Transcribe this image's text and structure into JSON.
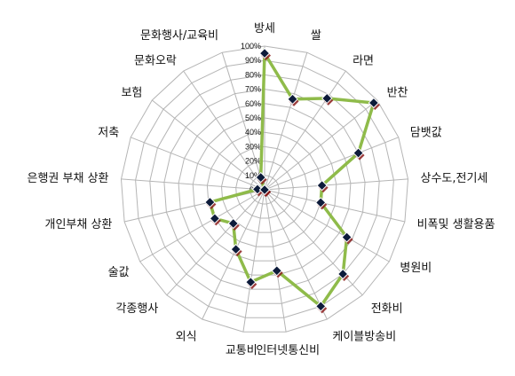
{
  "chart_data": {
    "type": "radar",
    "categories": [
      "방세",
      "쌀",
      "라면",
      "반찬",
      "담뱃값",
      "상수도,전기세",
      "비폭및 생활용품",
      "병원비",
      "전화비",
      "케이블방송비",
      "인터넷통신비",
      "교통비",
      "외식",
      "각종행사",
      "술값",
      "개인부채 상환",
      "은행권 부채 상환",
      "저축",
      "보험",
      "문화오락",
      "문화행사/교육비"
    ],
    "tick_labels": [
      "0%",
      "10%",
      "20%",
      "30%",
      "40%",
      "50%",
      "60%",
      "70%",
      "80%",
      "90%",
      "100%"
    ],
    "rlim": [
      0,
      100
    ],
    "grid": true,
    "series": [
      {
        "values": [
          95,
          66,
          77,
          97,
          70,
          40,
          40,
          66,
          80,
          90,
          57,
          65,
          46,
          32,
          40,
          39,
          5,
          0,
          0,
          0,
          9
        ]
      }
    ],
    "line_color": "#8fbb4a",
    "marker_color": "#0d1b3a",
    "marker_shadow_color": "#8b1c1c",
    "grid_color": "#b5b5b5"
  }
}
